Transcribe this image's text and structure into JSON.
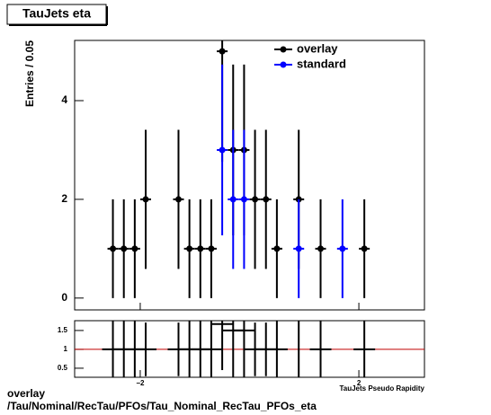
{
  "chart_data": [
    {
      "type": "errorbar",
      "title": "TauJets eta",
      "ylabel": "Entries / 0.05",
      "xlim": [
        -3.2,
        3.2
      ],
      "ylim": [
        -0.24,
        5.22
      ],
      "yticks": [
        0,
        2,
        4
      ],
      "legend": "top-right",
      "series": [
        {
          "name": "overlay",
          "color": "#000000",
          "x": [
            -2.5,
            -2.3,
            -2.1,
            -1.9,
            -1.3,
            -1.1,
            -0.9,
            -0.7,
            -0.5,
            -0.3,
            -0.1,
            0.1,
            0.3,
            0.5,
            0.9,
            1.3,
            2.1
          ],
          "values": [
            1,
            1,
            1,
            2,
            2,
            1,
            1,
            1,
            5,
            3,
            3,
            2,
            2,
            1,
            2,
            1,
            1
          ],
          "errors": [
            1,
            1,
            1,
            1.41,
            1.41,
            1,
            1,
            1,
            2.24,
            1.73,
            1.73,
            1.41,
            1.41,
            1,
            1.41,
            1,
            1
          ]
        },
        {
          "name": "standard",
          "color": "#0000ff",
          "x": [
            -0.5,
            -0.3,
            -0.1,
            0.9,
            1.7
          ],
          "values": [
            3,
            2,
            2,
            1,
            1
          ],
          "errors": [
            1.73,
            1.41,
            1.41,
            1,
            1
          ]
        }
      ]
    },
    {
      "type": "ratio",
      "xlabel": "TauJets Pseudo Rapidity",
      "xlim": [
        -3.2,
        3.2
      ],
      "ylim": [
        0.26,
        1.76
      ],
      "xticks": [
        {
          "value": -2,
          "label": "−2"
        },
        2
      ],
      "yticks": [
        0.5,
        1,
        1.5
      ],
      "reference": 1,
      "reference_color": "#c00000",
      "series": [
        {
          "color": "#000000",
          "x": [
            -2.5,
            -2.3,
            -2.1,
            -1.9,
            -1.3,
            -1.1,
            -0.9,
            -0.7,
            -0.5,
            -0.3,
            -0.1,
            0.1,
            0.3,
            0.5,
            0.9,
            1.3,
            2.1
          ],
          "values": [
            1,
            1,
            1,
            1,
            1,
            1,
            1,
            1,
            1.67,
            1.5,
            1.5,
            1,
            1,
            1,
            2,
            1,
            1
          ],
          "errors": [
            1.41,
            1.41,
            1.41,
            0.71,
            0.71,
            1.41,
            1.41,
            1.41,
            1.22,
            1.37,
            1.37,
            0.71,
            0.71,
            1.41,
            1.73,
            1.41,
            1.41
          ]
        }
      ]
    }
  ],
  "footer": {
    "lines": [
      "overlay",
      "/Tau/Nominal/RecTau/PFOs/Tau_Nominal_RecTau_PFOs_eta"
    ]
  }
}
